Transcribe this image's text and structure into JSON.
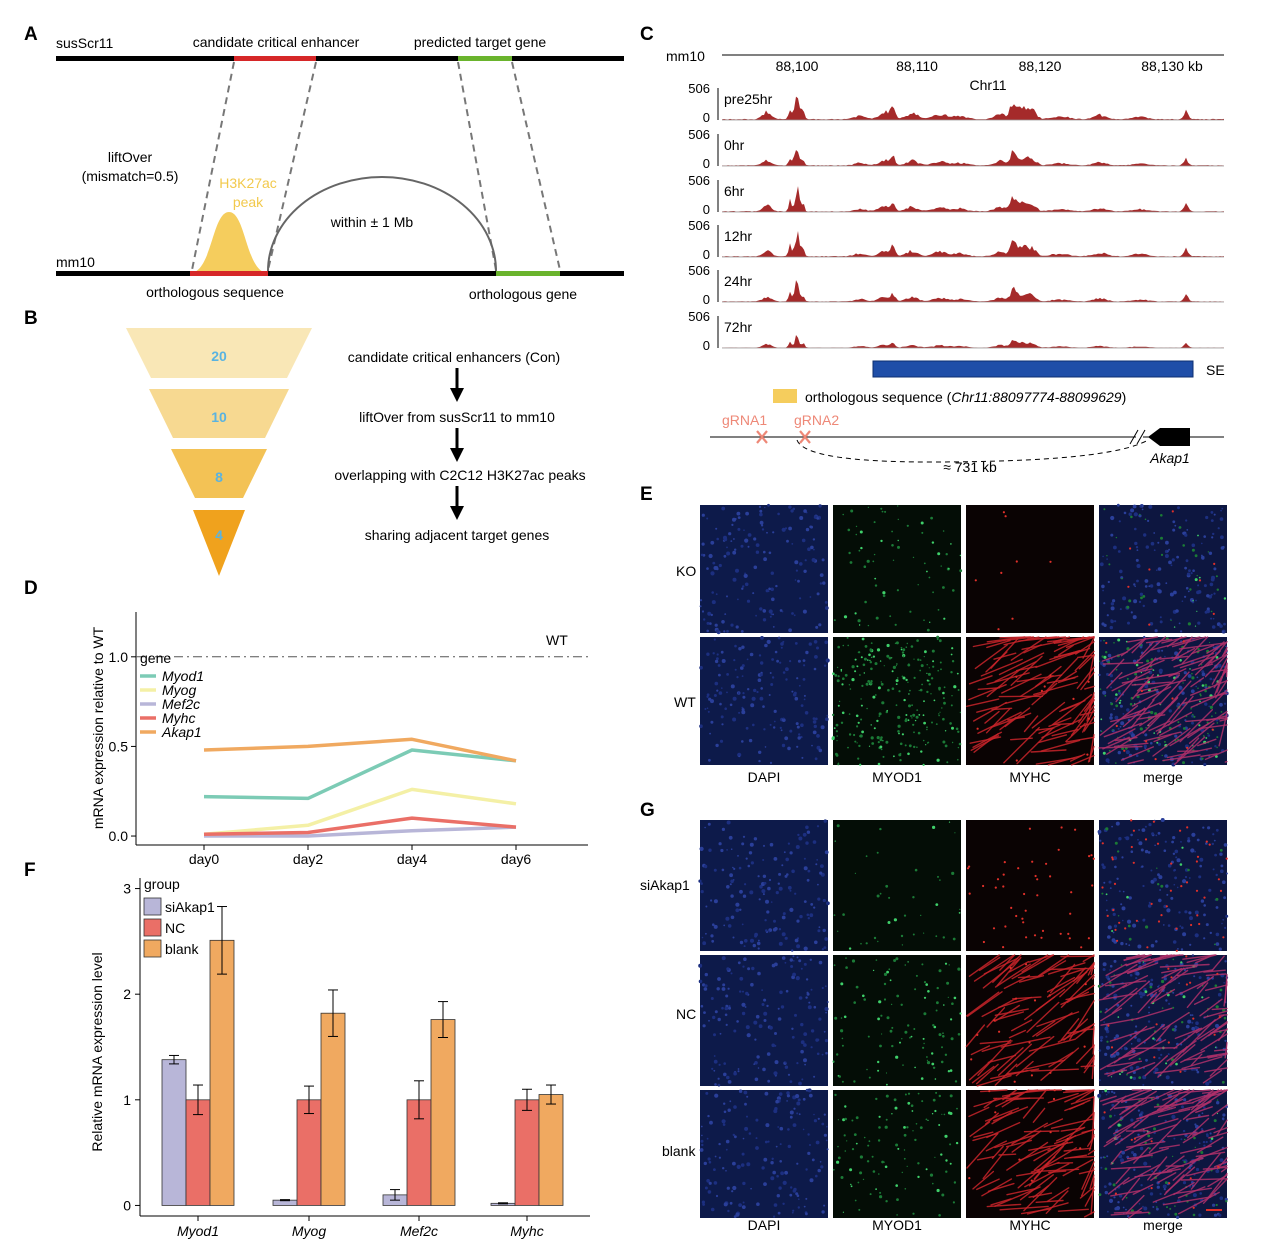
{
  "panels": {
    "A": {
      "label": "A",
      "top_genome": "susScr11",
      "bottom_genome": "mm10",
      "enhancer_label": "candidate critical enhancer",
      "target_label": "predicted target gene",
      "liftover_line1": "liftOver",
      "liftover_line2": "(mismatch=0.5)",
      "peak_line1": "H3K27ac",
      "peak_line2": "peak",
      "within_label": "within ± 1 Mb",
      "orthologous_sequence": "orthologous sequence",
      "orthologous_gene": "orthologous gene",
      "colors": {
        "enhancer": "#d62728",
        "gene": "#6ab42d",
        "peak": "#f5cd5d",
        "peak_text": "#f2c94c"
      }
    },
    "B": {
      "label": "B",
      "funnel": [
        {
          "value": "20",
          "color": "#f9e7b6"
        },
        {
          "value": "10",
          "color": "#f7d991"
        },
        {
          "value": "8",
          "color": "#f3c255"
        },
        {
          "value": "4",
          "color": "#f0a21d"
        }
      ],
      "steps": [
        "candidate critical enhancers (Con)",
        "liftOver from susScr11 to mm10",
        "overlapping with C2C12 H3K27ac peaks",
        "sharing adjacent target genes"
      ],
      "number_color": "#5ab3e0"
    },
    "C": {
      "label": "C",
      "genome": "mm10",
      "chrom": "Chr11",
      "ticks": [
        "88,100",
        "88,110",
        "88,120",
        "88,130 kb"
      ],
      "tracks": [
        {
          "name": "pre25hr",
          "ymax": "506",
          "ymin": "0"
        },
        {
          "name": "0hr",
          "ymax": "506",
          "ymin": "0"
        },
        {
          "name": "6hr",
          "ymax": "506",
          "ymin": "0"
        },
        {
          "name": "12hr",
          "ymax": "506",
          "ymin": "0"
        },
        {
          "name": "24hr",
          "ymax": "506",
          "ymin": "0"
        },
        {
          "name": "72hr",
          "ymax": "506",
          "ymin": "0"
        }
      ],
      "se_label": "SE",
      "legend_text": "orthologous sequence (",
      "legend_coord": "Chr11:88097774-88099629",
      "legend_close": ")",
      "grna1": "gRNA1",
      "grna2": "gRNA2",
      "distance": "≈ 731 kb",
      "gene": "Akap1",
      "colors": {
        "track": "#a52a2a",
        "se": "#1f4ea8",
        "legend": "#f5cd5d",
        "grna": "#ee8877"
      }
    },
    "D": {
      "label": "D",
      "ylabel": "mRNA expression relative to WT",
      "legend_title": "gene",
      "wt_label": "WT"
    },
    "E": {
      "label": "E",
      "rows": [
        "KO",
        "WT"
      ],
      "columns": [
        "DAPI",
        "MYOD1",
        "MYHC",
        "merge"
      ]
    },
    "F": {
      "label": "F",
      "ylabel": "Relative mRNA expression level",
      "legend_title": "group"
    },
    "G": {
      "label": "G",
      "rows": [
        "siAkap1",
        "NC",
        "blank"
      ],
      "columns": [
        "DAPI",
        "MYOD1",
        "MYHC",
        "merge"
      ]
    }
  },
  "chart_data": [
    {
      "panel": "D",
      "type": "line",
      "x": [
        "day0",
        "day2",
        "day4",
        "day6"
      ],
      "ylabel": "mRNA expression relative to WT",
      "ylim": [
        -0.05,
        1.25
      ],
      "yticks": [
        "0.0",
        "0.5",
        "1.0"
      ],
      "reference_line": {
        "value": 1.0,
        "label": "WT"
      },
      "legend_title": "gene",
      "series": [
        {
          "name": "Myod1",
          "color": "#7ccbb5",
          "values": [
            0.22,
            0.21,
            0.48,
            0.42
          ]
        },
        {
          "name": "Myog",
          "color": "#f4f0a6",
          "values": [
            0.01,
            0.06,
            0.26,
            0.18
          ]
        },
        {
          "name": "Mef2c",
          "color": "#b8b6d8",
          "values": [
            0.0,
            0.0,
            0.03,
            0.05
          ]
        },
        {
          "name": "Myhc",
          "color": "#ea6f67",
          "values": [
            0.01,
            0.02,
            0.1,
            0.05
          ]
        },
        {
          "name": "Akap1",
          "color": "#f0a960",
          "values": [
            0.48,
            0.5,
            0.54,
            0.42
          ]
        }
      ]
    },
    {
      "panel": "F",
      "type": "bar",
      "categories": [
        "Myod1",
        "Myog",
        "Mef2c",
        "Myhc"
      ],
      "ylabel": "Relative mRNA expression level",
      "ylim": [
        -0.1,
        3.1
      ],
      "yticks": [
        "0",
        "1",
        "2",
        "3"
      ],
      "legend_title": "group",
      "series": [
        {
          "name": "siAkap1",
          "color": "#b8b6d8",
          "values": [
            1.38,
            0.05,
            0.1,
            0.02
          ],
          "errors": [
            0.04,
            0.005,
            0.05,
            0.005
          ]
        },
        {
          "name": "NC",
          "color": "#ea6f67",
          "values": [
            1.0,
            1.0,
            1.0,
            1.0
          ],
          "errors": [
            0.14,
            0.13,
            0.18,
            0.1
          ]
        },
        {
          "name": "blank",
          "color": "#f0a960",
          "values": [
            2.51,
            1.82,
            1.76,
            1.05
          ],
          "errors": [
            0.32,
            0.22,
            0.17,
            0.09
          ]
        }
      ]
    }
  ]
}
